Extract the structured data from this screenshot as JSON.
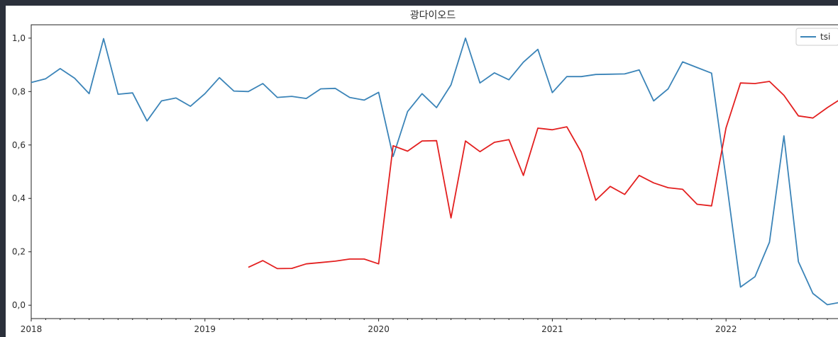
{
  "chart_data": {
    "type": "line",
    "title": "광다이오드",
    "xlabel": "",
    "ylabel": "",
    "ylim": [
      -0.05,
      1.05
    ],
    "yticks": [
      0.0,
      0.2,
      0.4,
      0.6,
      0.8,
      1.0
    ],
    "ytick_labels": [
      "0,0",
      "0,2",
      "0,4",
      "0,6",
      "0,8",
      "1,0"
    ],
    "xticks": [
      "2018-01",
      "2019-01",
      "2020-01",
      "2021-01",
      "2022-01"
    ],
    "xtick_labels": [
      "2018",
      "2019",
      "2020",
      "2021",
      "2022"
    ],
    "grid": false,
    "legend": {
      "placement": "top-right",
      "entries": [
        "tsi"
      ]
    },
    "series": [
      {
        "name": "tsi",
        "color": "#3b84b8",
        "x": [
          "2018-01",
          "2018-02",
          "2018-03",
          "2018-04",
          "2018-05",
          "2018-06",
          "2018-07",
          "2018-08",
          "2018-09",
          "2018-10",
          "2018-11",
          "2018-12",
          "2019-01",
          "2019-02",
          "2019-03",
          "2019-04",
          "2019-05",
          "2019-06",
          "2019-07",
          "2019-08",
          "2019-09",
          "2019-10",
          "2019-11",
          "2019-12",
          "2020-01",
          "2020-02",
          "2020-03",
          "2020-04",
          "2020-05",
          "2020-06",
          "2020-07",
          "2020-08",
          "2020-09",
          "2020-10",
          "2020-11",
          "2020-12",
          "2021-01",
          "2021-02",
          "2021-03",
          "2021-04",
          "2021-05",
          "2021-06",
          "2021-07",
          "2021-08",
          "2021-09",
          "2021-10",
          "2021-11",
          "2021-12",
          "2022-01",
          "2022-02",
          "2022-03",
          "2022-04",
          "2022-05",
          "2022-06",
          "2022-07",
          "2022-08",
          "2022-09"
        ],
        "values": [
          0.834,
          0.848,
          0.886,
          0.85,
          0.792,
          0.998,
          0.79,
          0.795,
          0.69,
          0.765,
          0.776,
          0.745,
          0.792,
          0.852,
          0.802,
          0.8,
          0.83,
          0.778,
          0.782,
          0.774,
          0.81,
          0.812,
          0.778,
          0.768,
          0.797,
          0.557,
          0.725,
          0.792,
          0.74,
          0.825,
          1.0,
          0.832,
          0.87,
          0.844,
          0.91,
          0.958,
          0.796,
          0.856,
          0.856,
          0.864,
          0.865,
          0.866,
          0.881,
          0.765,
          0.81,
          0.911,
          0.89,
          0.869,
          0.475,
          0.068,
          0.107,
          0.236,
          0.634,
          0.163,
          0.044,
          0.002,
          0.012
        ]
      },
      {
        "name": "",
        "color": "#e32020",
        "x": [
          "2019-04",
          "2019-05",
          "2019-06",
          "2019-07",
          "2019-08",
          "2019-09",
          "2019-10",
          "2019-11",
          "2019-12",
          "2020-01",
          "2020-02",
          "2020-03",
          "2020-04",
          "2020-05",
          "2020-06",
          "2020-07",
          "2020-08",
          "2020-09",
          "2020-10",
          "2020-11",
          "2020-12",
          "2021-01",
          "2021-02",
          "2021-03",
          "2021-04",
          "2021-05",
          "2021-06",
          "2021-07",
          "2021-08",
          "2021-09",
          "2021-10",
          "2021-11",
          "2021-12",
          "2022-01",
          "2022-02",
          "2022-03",
          "2022-04",
          "2022-05",
          "2022-06",
          "2022-07",
          "2022-08",
          "2022-09"
        ],
        "values": [
          0.142,
          0.167,
          0.137,
          0.138,
          0.155,
          0.16,
          0.165,
          0.173,
          0.173,
          0.155,
          0.597,
          0.577,
          0.615,
          0.616,
          0.327,
          0.615,
          0.575,
          0.61,
          0.62,
          0.486,
          0.663,
          0.657,
          0.668,
          0.573,
          0.393,
          0.445,
          0.415,
          0.486,
          0.458,
          0.44,
          0.434,
          0.378,
          0.372,
          0.664,
          0.832,
          0.83,
          0.838,
          0.786,
          0.709,
          0.701,
          0.74,
          0.775
        ]
      }
    ]
  }
}
